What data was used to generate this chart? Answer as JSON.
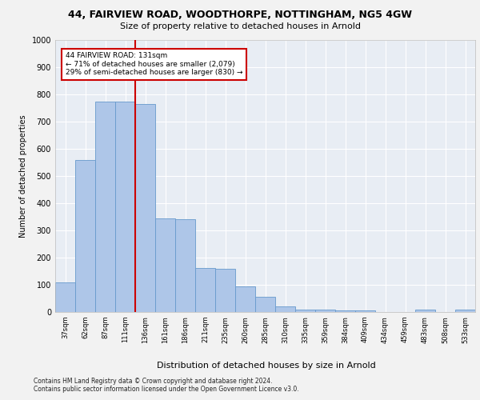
{
  "title1": "44, FAIRVIEW ROAD, WOODTHORPE, NOTTINGHAM, NG5 4GW",
  "title2": "Size of property relative to detached houses in Arnold",
  "xlabel": "Distribution of detached houses by size in Arnold",
  "ylabel": "Number of detached properties",
  "categories": [
    "37sqm",
    "62sqm",
    "87sqm",
    "111sqm",
    "136sqm",
    "161sqm",
    "186sqm",
    "211sqm",
    "235sqm",
    "260sqm",
    "285sqm",
    "310sqm",
    "335sqm",
    "359sqm",
    "384sqm",
    "409sqm",
    "434sqm",
    "459sqm",
    "483sqm",
    "508sqm",
    "533sqm"
  ],
  "values": [
    110,
    558,
    775,
    775,
    765,
    343,
    340,
    163,
    160,
    95,
    55,
    20,
    10,
    8,
    6,
    5,
    0,
    0,
    10,
    0,
    10
  ],
  "bar_color": "#aec6e8",
  "bar_edge_color": "#6699cc",
  "bg_color": "#e8edf4",
  "grid_color": "#ffffff",
  "property_line_color": "#cc0000",
  "annotation_text": "44 FAIRVIEW ROAD: 131sqm\n← 71% of detached houses are smaller (2,079)\n29% of semi-detached houses are larger (830) →",
  "annotation_box_color": "#cc0000",
  "ylim": [
    0,
    1000
  ],
  "yticks": [
    0,
    100,
    200,
    300,
    400,
    500,
    600,
    700,
    800,
    900,
    1000
  ],
  "footer1": "Contains HM Land Registry data © Crown copyright and database right 2024.",
  "footer2": "Contains public sector information licensed under the Open Government Licence v3.0.",
  "fig_bg": "#f2f2f2"
}
